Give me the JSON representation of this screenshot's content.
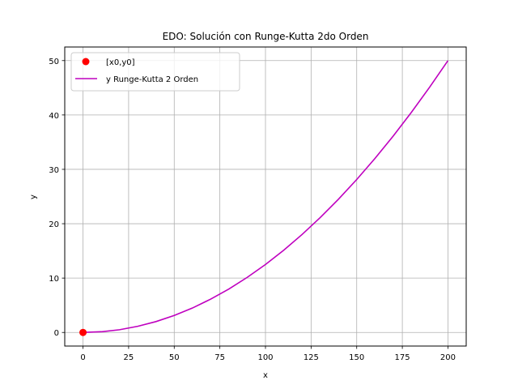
{
  "chart_data": {
    "type": "line",
    "title": "EDO: Solución con Runge-Kutta 2do Orden",
    "xlabel": "x",
    "ylabel": "y",
    "xlim": [
      -10,
      210
    ],
    "ylim": [
      -2.5,
      52.5
    ],
    "xticks": [
      0,
      25,
      50,
      75,
      100,
      125,
      150,
      175,
      200
    ],
    "yticks": [
      0,
      10,
      20,
      30,
      40,
      50
    ],
    "grid": true,
    "legend_position": "top-left",
    "colors": {
      "point": "#ff0000",
      "line": "#bf00bf"
    },
    "points": {
      "name": "[x0,y0]",
      "x": [
        0
      ],
      "y": [
        0
      ]
    },
    "series": [
      {
        "name": "y Runge-Kutta 2 Orden",
        "x": [
          0,
          10,
          20,
          30,
          40,
          50,
          60,
          70,
          80,
          90,
          100,
          110,
          120,
          130,
          140,
          150,
          160,
          170,
          180,
          190,
          200
        ],
        "y": [
          0,
          0.13,
          0.5,
          1.13,
          2.0,
          3.13,
          4.5,
          6.13,
          8.0,
          10.13,
          12.5,
          15.13,
          18.0,
          21.13,
          24.5,
          28.13,
          32.0,
          36.13,
          40.5,
          45.13,
          50.0
        ]
      }
    ]
  }
}
